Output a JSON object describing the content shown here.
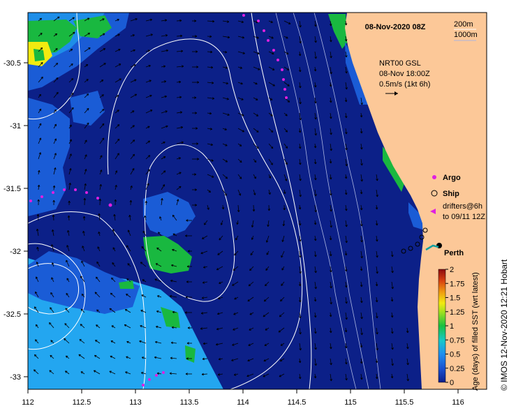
{
  "title": "08-Nov-2020 08Z",
  "depth_legend": [
    "200m",
    "1000m"
  ],
  "product": {
    "line1": "NRT00 GSL",
    "line2": "08-Nov 18:00Z",
    "line3": "0.5m/s (1kt 6h)"
  },
  "legend": {
    "argo": "Argo",
    "ship": "Ship",
    "drifters_line1": "drifters@6h",
    "drifters_line2": "to 09/11 12Z"
  },
  "place_label": "Perth",
  "credit": "© IMOS 12-Nov-2020 12:21 Hobart",
  "colors": {
    "land": "#fcc898",
    "deep": "#0c2088",
    "mid_blue": "#1a5cd6",
    "light_blue": "#23a6f0",
    "green": "#19b840",
    "yellow": "#f2ea10",
    "drifter": "#e020e0"
  },
  "x_ticks": [
    "112",
    "112.5",
    "113",
    "113.5",
    "114",
    "114.5",
    "115",
    "115.5",
    "116"
  ],
  "y_ticks": [
    "-30.5",
    "-31",
    "-31.5",
    "-32",
    "-32.5",
    "-33"
  ],
  "colorbar": {
    "title": "Age (days) of filled SST (wrt latest)",
    "ticks": [
      "2",
      "1.75",
      "1.5",
      "1.25",
      "1",
      "0.75",
      "0.5",
      "0.25",
      "0"
    ]
  }
}
